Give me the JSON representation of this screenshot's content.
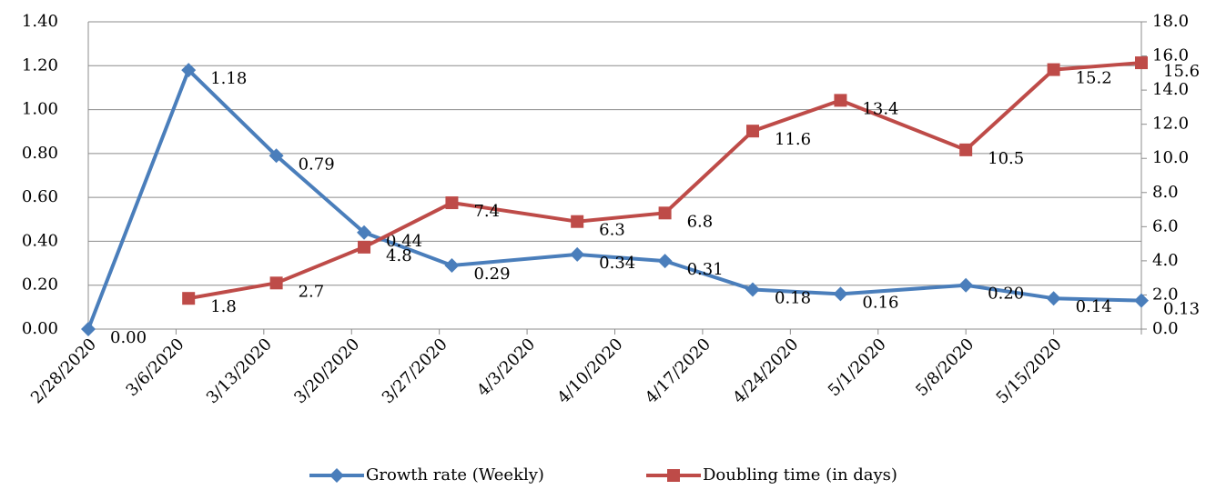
{
  "chart_data": {
    "type": "line",
    "x": [
      "2/28/2020",
      "3/7/2020",
      "3/14/2020",
      "3/21/2020",
      "3/28/2020",
      "4/7/2020",
      "4/14/2020",
      "4/21/2020",
      "4/28/2020",
      "5/8/2020",
      "5/15/2020",
      "5/22/2020"
    ],
    "xlim": [
      "2/28/2020",
      "5/22/2020"
    ],
    "xticks": [
      "2/28/2020",
      "3/6/2020",
      "3/13/2020",
      "3/20/2020",
      "3/27/2020",
      "4/3/2020",
      "4/10/2020",
      "4/17/2020",
      "4/24/2020",
      "5/1/2020",
      "5/8/2020",
      "5/15/2020"
    ],
    "series": [
      {
        "name": "Growth rate (Weekly)",
        "color": "#4a7ebb",
        "marker": "diamond",
        "values": [
          0,
          1.18,
          0.79,
          0.44,
          0.29,
          0.34,
          0.31,
          0.18,
          0.16,
          0.2,
          0.14,
          0.13
        ],
        "value_labels": [
          "0.00",
          "1.18",
          "0.79",
          "0.44",
          "0.29",
          "0.34",
          "0.31",
          "0.18",
          "0.16",
          "0.20",
          "0.14",
          "0.13"
        ]
      },
      {
        "name": "Doubling time (in days)",
        "color": "#be4b48",
        "marker": "square",
        "axis": "y2",
        "values": [
          null,
          1.8,
          2.7,
          4.8,
          7.4,
          6.3,
          6.8,
          11.6,
          13.4,
          10.5,
          15.2,
          15.6
        ]
      }
    ],
    "ylim": [
      0,
      1.4
    ],
    "yticks": [
      {
        "value": 0,
        "label": "0.00"
      },
      {
        "value": 0.2,
        "label": "0.20"
      },
      {
        "value": 0.4,
        "label": "0.40"
      },
      {
        "value": 0.6,
        "label": "0.60"
      },
      {
        "value": 0.8,
        "label": "0.80"
      },
      {
        "value": 1,
        "label": "1.00"
      },
      {
        "value": 1.2,
        "label": "1.20"
      },
      {
        "value": 1.4,
        "label": "1.40"
      }
    ],
    "y2lim": [
      0,
      18
    ],
    "y2ticks": [
      {
        "value": 0,
        "label": "0.0"
      },
      {
        "value": 2,
        "label": "2.0"
      },
      {
        "value": 4,
        "label": "4.0"
      },
      {
        "value": 6,
        "label": "6.0"
      },
      {
        "value": 8,
        "label": "8.0"
      },
      {
        "value": 10,
        "label": "10.0"
      },
      {
        "value": 12,
        "label": "12.0"
      },
      {
        "value": 14,
        "label": "14.0"
      },
      {
        "value": 16,
        "label": "16.0"
      },
      {
        "value": 18,
        "label": "18.0"
      }
    ],
    "grid": true,
    "legend": "bottom"
  }
}
